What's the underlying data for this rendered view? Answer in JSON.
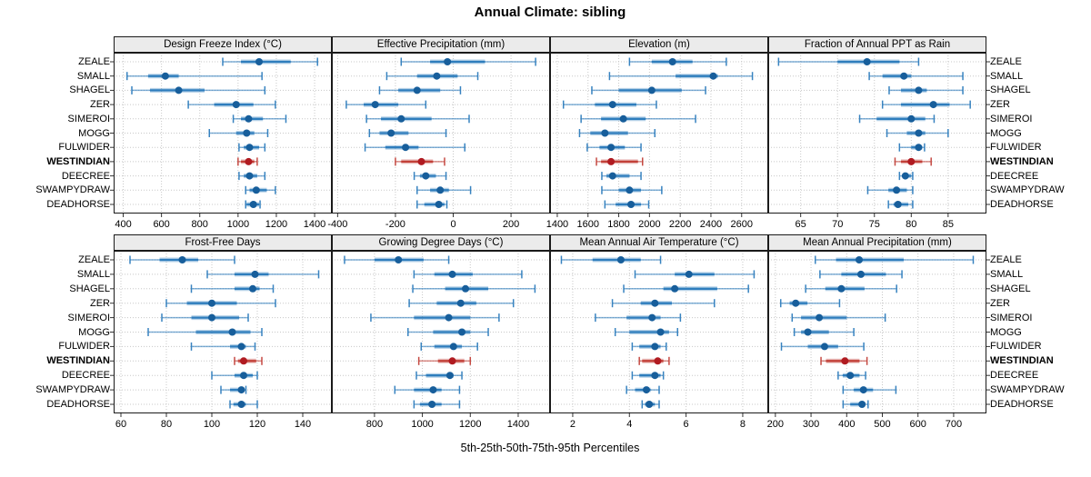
{
  "title": "Annual Climate: sibling",
  "caption": "5th-25th-50th-75th-95th Percentiles",
  "highlight_site": "WESTINDIAN",
  "sites": [
    "ZEALE",
    "SMALL",
    "SHAGEL",
    "ZER",
    "SIMEROI",
    "MOGG",
    "FULWIDER",
    "WESTINDIAN",
    "DEECREE",
    "SWAMPYDRAW",
    "DEADHORSE"
  ],
  "colors": {
    "blue": "#2e7dbd",
    "blue_dot": "#175e9b",
    "red": "#c24038",
    "red_dot": "#b01b21",
    "strip_bg": "#ebebeb",
    "panel_border": "#1a1a1a",
    "grid": "#c8c8c8"
  },
  "chart_data": {
    "type": "scatter",
    "subtype": "percentile-dotplot-trellis",
    "grid": true,
    "percentiles": [
      5,
      25,
      50,
      75,
      95
    ],
    "note": "Each row shows 5th-25th-50th-75th-95th percentile whisker/band/median-dot per site; WESTINDIAN highlighted in red",
    "panels": [
      {
        "name": "Design Freeze Index (°C)",
        "xlim": [
          350,
          1490
        ],
        "ticks": [
          400,
          600,
          800,
          1000,
          1200,
          1400
        ],
        "values": [
          [
            920,
            1015,
            1110,
            1275,
            1415
          ],
          [
            420,
            530,
            620,
            690,
            1125
          ],
          [
            445,
            540,
            690,
            825,
            1140
          ],
          [
            740,
            875,
            990,
            1080,
            1195
          ],
          [
            975,
            1015,
            1055,
            1130,
            1250
          ],
          [
            850,
            990,
            1045,
            1085,
            1155
          ],
          [
            1005,
            1030,
            1060,
            1110,
            1140
          ],
          [
            1000,
            1015,
            1055,
            1085,
            1100
          ],
          [
            1005,
            1030,
            1060,
            1100,
            1140
          ],
          [
            1040,
            1060,
            1095,
            1150,
            1195
          ],
          [
            1040,
            1045,
            1080,
            1110,
            1115
          ]
        ]
      },
      {
        "name": "Effective Precipitation (mm)",
        "xlim": [
          -420,
          335
        ],
        "ticks": [
          -400,
          -200,
          0,
          200
        ],
        "values": [
          [
            -180,
            -80,
            -20,
            110,
            285
          ],
          [
            -230,
            -125,
            -57,
            15,
            85
          ],
          [
            -255,
            -190,
            -125,
            -45,
            25
          ],
          [
            -370,
            -310,
            -270,
            -190,
            -95
          ],
          [
            -300,
            -250,
            -180,
            -75,
            55
          ],
          [
            -290,
            -255,
            -215,
            -155,
            -25
          ],
          [
            -305,
            -235,
            -165,
            -120,
            40
          ],
          [
            -200,
            -180,
            -110,
            -70,
            -30
          ],
          [
            -135,
            -115,
            -95,
            -60,
            -25
          ],
          [
            -125,
            -80,
            -45,
            -15,
            60
          ],
          [
            -125,
            -100,
            -50,
            -30,
            -22
          ]
        ]
      },
      {
        "name": "Elevation (m)",
        "xlim": [
          1353,
          2773
        ],
        "ticks": [
          1400,
          1600,
          1800,
          2000,
          2200,
          2400,
          2600
        ],
        "values": [
          [
            1870,
            2015,
            2150,
            2280,
            2500
          ],
          [
            1740,
            2170,
            2415,
            2445,
            2670
          ],
          [
            1625,
            1800,
            2015,
            2210,
            2365
          ],
          [
            1440,
            1645,
            1760,
            1915,
            2045
          ],
          [
            1555,
            1685,
            1830,
            1975,
            2300
          ],
          [
            1545,
            1615,
            1710,
            1860,
            2035
          ],
          [
            1595,
            1675,
            1750,
            1840,
            1945
          ],
          [
            1655,
            1685,
            1750,
            1925,
            1955
          ],
          [
            1690,
            1720,
            1760,
            1870,
            1945
          ],
          [
            1690,
            1800,
            1870,
            1945,
            2080
          ],
          [
            1710,
            1780,
            1880,
            1945,
            1995
          ]
        ]
      },
      {
        "name": "Fraction of Annual PPT as Rain",
        "xlim": [
          60.6,
          90.2
        ],
        "ticks": [
          65,
          70,
          75,
          80,
          85
        ],
        "values": [
          [
            62,
            70,
            74,
            78.4,
            81
          ],
          [
            74.3,
            76.1,
            79,
            80,
            87
          ],
          [
            77,
            78.6,
            81,
            82.1,
            87
          ],
          [
            76.1,
            78.6,
            83,
            85.2,
            88
          ],
          [
            73,
            75.3,
            80,
            81.9,
            83.1
          ],
          [
            76.7,
            79.4,
            81,
            81.9,
            85
          ],
          [
            78.4,
            80,
            81,
            81.5,
            81.8
          ],
          [
            77.8,
            78.6,
            80,
            81.5,
            82.7
          ],
          [
            78.4,
            78.8,
            79.2,
            80,
            80.2
          ],
          [
            74.1,
            76.9,
            78,
            79.4,
            80.2
          ],
          [
            76.9,
            77.6,
            78.2,
            79.6,
            80.2
          ]
        ]
      },
      {
        "name": "Frost-Free Days",
        "xlim": [
          56.8,
          152.8
        ],
        "ticks": [
          60,
          80,
          100,
          120,
          140
        ],
        "values": [
          [
            64,
            77,
            87,
            94,
            110
          ],
          [
            98,
            110,
            119,
            125,
            147
          ],
          [
            91,
            110,
            118,
            121,
            127
          ],
          [
            80,
            89,
            100,
            111,
            128
          ],
          [
            78,
            91,
            100,
            112,
            116
          ],
          [
            72,
            93,
            109,
            117,
            122
          ],
          [
            91,
            108,
            113,
            115,
            119
          ],
          [
            110,
            111.5,
            114,
            119.5,
            122
          ],
          [
            100,
            110,
            114,
            118,
            120
          ],
          [
            104,
            108,
            113,
            114,
            115
          ],
          [
            108,
            109.5,
            113,
            115,
            120
          ]
        ]
      },
      {
        "name": "Growing Degree Days (°C)",
        "xlim": [
          622,
          1533
        ],
        "ticks": [
          800,
          1000,
          1200,
          1400
        ],
        "values": [
          [
            675,
            800,
            900,
            1005,
            1110
          ],
          [
            965,
            1050,
            1125,
            1210,
            1415
          ],
          [
            960,
            1095,
            1180,
            1275,
            1470
          ],
          [
            945,
            1060,
            1160,
            1225,
            1380
          ],
          [
            785,
            965,
            1110,
            1200,
            1320
          ],
          [
            940,
            1045,
            1165,
            1200,
            1275
          ],
          [
            995,
            1050,
            1130,
            1165,
            1230
          ],
          [
            985,
            1065,
            1125,
            1175,
            1200
          ],
          [
            975,
            1015,
            1115,
            1130,
            1165
          ],
          [
            885,
            965,
            1045,
            1080,
            1155
          ],
          [
            965,
            990,
            1040,
            1080,
            1155
          ]
        ]
      },
      {
        "name": "Mean Annual Air Temperature (°C)",
        "xlim": [
          1.2,
          8.9
        ],
        "ticks": [
          2,
          4,
          6,
          8
        ],
        "values": [
          [
            1.6,
            2.7,
            3.7,
            4.4,
            5.1
          ],
          [
            4.2,
            5.6,
            6.1,
            7.0,
            8.4
          ],
          [
            3.8,
            5.2,
            5.6,
            7.1,
            8.2
          ],
          [
            3.4,
            4.4,
            4.9,
            5.5,
            7.0
          ],
          [
            2.8,
            3.9,
            4.8,
            5.1,
            5.8
          ],
          [
            3.5,
            4.0,
            5.1,
            5.4,
            5.7
          ],
          [
            4.1,
            4.35,
            4.9,
            5.1,
            5.3
          ],
          [
            4.35,
            4.45,
            5.0,
            5.2,
            5.4
          ],
          [
            4.1,
            4.35,
            4.9,
            5.1,
            5.2
          ],
          [
            3.9,
            4.2,
            4.6,
            4.75,
            5.05
          ],
          [
            4.45,
            4.55,
            4.7,
            4.9,
            5.05
          ]
        ]
      },
      {
        "name": "Mean Annual Precipitation (mm)",
        "xlim": [
          180,
          792
        ],
        "ticks": [
          200,
          300,
          400,
          500,
          600,
          700
        ],
        "values": [
          [
            312,
            370,
            435,
            560,
            755
          ],
          [
            325,
            385,
            440,
            510,
            555
          ],
          [
            285,
            340,
            385,
            450,
            540
          ],
          [
            215,
            240,
            257,
            290,
            380
          ],
          [
            247,
            272,
            323,
            400,
            508
          ],
          [
            253,
            272,
            291,
            350,
            420
          ],
          [
            217,
            291,
            338,
            376,
            448
          ],
          [
            328,
            342,
            395,
            436,
            457
          ],
          [
            376,
            389,
            410,
            436,
            453
          ],
          [
            390,
            420,
            447,
            474,
            538
          ],
          [
            390,
            410,
            443,
            452,
            460
          ]
        ]
      }
    ]
  }
}
